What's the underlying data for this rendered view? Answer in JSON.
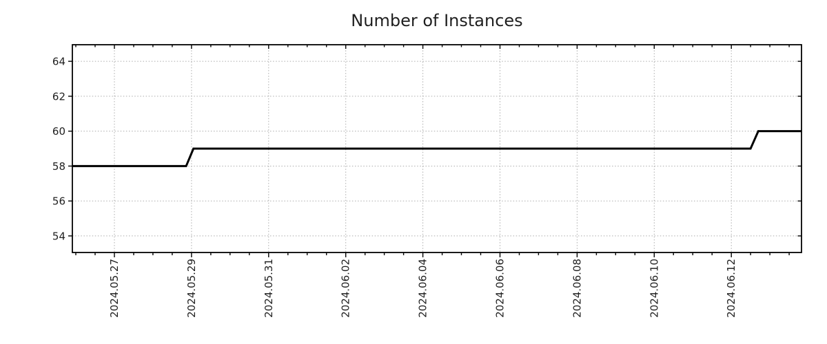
{
  "chart_data": {
    "type": "line",
    "title": "Number of Instances",
    "series_name": "instances",
    "line_style": "step",
    "x_epoch": "2024-05-26T00:00",
    "x_unit": "days since x_epoch",
    "x": [
      -0.09,
      2.86,
      3.05,
      17.5,
      17.7,
      18.82
    ],
    "values": [
      58,
      58,
      59,
      59,
      60,
      60
    ],
    "xlim": [
      -0.09,
      18.82
    ],
    "ylim": [
      53.05,
      64.95
    ],
    "y_ticks": [
      54,
      56,
      58,
      60,
      62,
      64
    ],
    "x_major_ticks": [
      {
        "d": 1,
        "label": "2024.05.27"
      },
      {
        "d": 3,
        "label": "2024.05.29"
      },
      {
        "d": 5,
        "label": "2024.05.31"
      },
      {
        "d": 7,
        "label": "2024.06.02"
      },
      {
        "d": 9,
        "label": "2024.06.04"
      },
      {
        "d": 11,
        "label": "2024.06.06"
      },
      {
        "d": 13,
        "label": "2024.06.08"
      },
      {
        "d": 15,
        "label": "2024.06.10"
      },
      {
        "d": 17,
        "label": "2024.06.12"
      }
    ],
    "x_minor_step": 0.5,
    "grid": true,
    "legend": "none",
    "colors": {
      "line": "#000000",
      "frame": "#000000",
      "grid": "#ababab",
      "text": "#1f1f1f",
      "background": "#ffffff"
    }
  }
}
